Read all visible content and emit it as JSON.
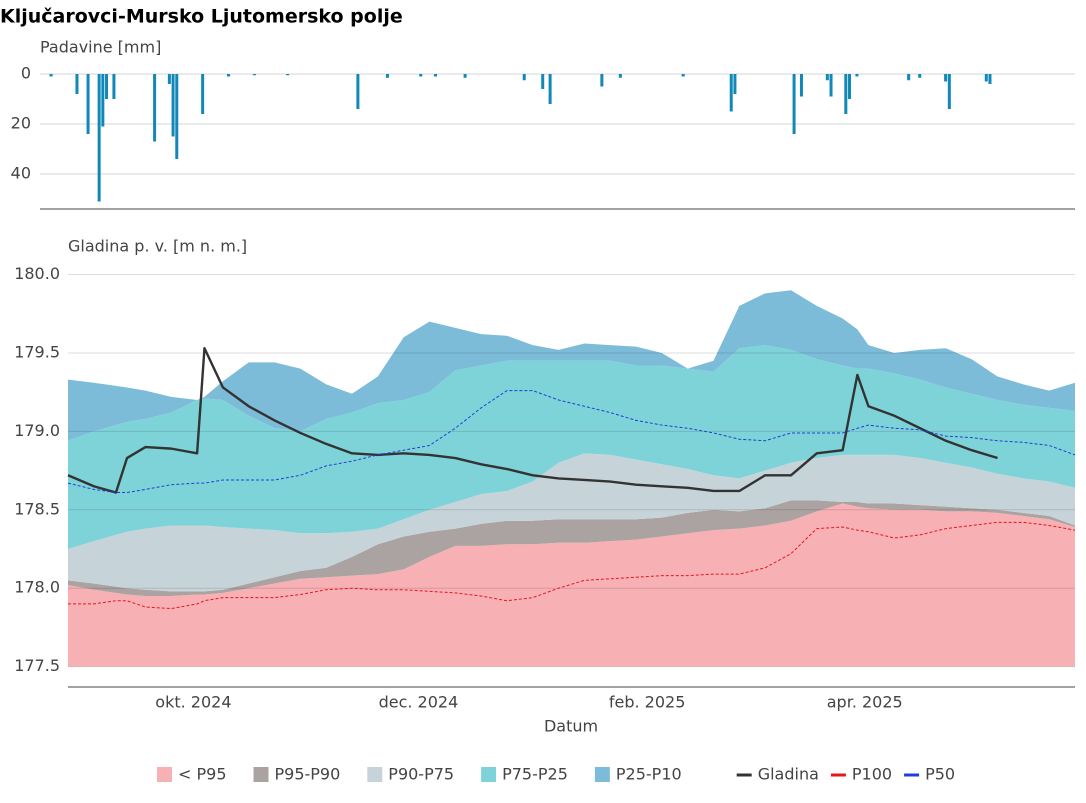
{
  "chart_data": [
    {
      "type": "bar",
      "title": "Ključarovci-Mursko Ljutomersko polje",
      "y_label": "Padavine [mm]",
      "x": [
        "2024-08-24",
        "2024-08-31",
        "2024-09-03",
        "2024-09-06",
        "2024-09-07",
        "2024-09-08",
        "2024-09-10",
        "2024-09-21",
        "2024-09-25",
        "2024-09-26",
        "2024-09-27",
        "2024-10-04",
        "2024-10-11",
        "2024-10-18",
        "2024-10-27",
        "2024-11-15",
        "2024-11-23",
        "2024-12-02",
        "2024-12-06",
        "2024-12-14",
        "2024-12-30",
        "2025-01-04",
        "2025-01-06",
        "2025-01-20",
        "2025-01-25",
        "2025-02-11",
        "2025-02-24",
        "2025-02-25",
        "2025-03-13",
        "2025-03-15",
        "2025-03-22",
        "2025-03-23",
        "2025-03-27",
        "2025-03-28",
        "2025-03-30",
        "2025-04-13",
        "2025-04-16",
        "2025-04-23",
        "2025-04-24",
        "2025-05-04",
        "2025-05-05"
      ],
      "values": [
        1,
        8,
        24,
        51,
        21,
        10,
        10,
        27,
        4,
        25,
        34,
        16,
        1,
        0.5,
        0.5,
        14,
        1.5,
        1,
        1,
        1.5,
        2.5,
        6,
        12,
        5,
        1.5,
        1,
        15,
        8,
        24,
        9,
        2.5,
        9,
        16,
        10,
        1,
        2.5,
        1.5,
        3,
        14,
        3,
        4
      ],
      "color": "#1288b8",
      "xlim": [
        "2024-08-21",
        "2025-05-28"
      ],
      "ylim": [
        0,
        54
      ],
      "y_inverted": true,
      "yticks": [
        0,
        20,
        40
      ],
      "grid": true
    },
    {
      "type": "band",
      "y_label": "Gladina p. v. [m n. m.]",
      "x_label": "Datum",
      "floor": 177.5,
      "x": [
        "2024-08-28",
        "2024-09-04",
        "2024-09-10",
        "2024-09-13",
        "2024-09-18",
        "2024-09-25",
        "2024-10-02",
        "2024-10-04",
        "2024-10-09",
        "2024-10-16",
        "2024-10-23",
        "2024-10-30",
        "2024-11-06",
        "2024-11-13",
        "2024-11-20",
        "2024-11-27",
        "2024-12-04",
        "2024-12-11",
        "2024-12-18",
        "2024-12-25",
        "2025-01-01",
        "2025-01-08",
        "2025-01-15",
        "2025-01-22",
        "2025-01-29",
        "2025-02-05",
        "2025-02-12",
        "2025-02-19",
        "2025-02-26",
        "2025-03-05",
        "2025-03-12",
        "2025-03-19",
        "2025-03-26",
        "2025-03-30",
        "2025-04-02",
        "2025-04-09",
        "2025-04-16",
        "2025-04-23",
        "2025-04-30",
        "2025-05-07",
        "2025-05-14",
        "2025-05-21",
        "2025-05-28"
      ],
      "xlim": [
        "2024-08-28",
        "2025-05-28"
      ],
      "xticks": [
        {
          "value": "2024-10-01",
          "label": "okt. 2024"
        },
        {
          "value": "2024-12-01",
          "label": "dec. 2024"
        },
        {
          "value": "2025-02-01",
          "label": "feb. 2025"
        },
        {
          "value": "2025-04-01",
          "label": "apr. 2025"
        }
      ],
      "ylim": [
        177.37,
        180.08
      ],
      "yticks": [
        177.5,
        {
          "value": 178,
          "label": "178.0"
        },
        178.5,
        {
          "value": 179,
          "label": "179.0"
        },
        179.5,
        {
          "value": 180,
          "label": "180.0"
        }
      ],
      "grid": true,
      "series": [
        {
          "name": "< P95",
          "kind": "band",
          "color": "#f7b0b4",
          "values": [
            178.02,
            177.99,
            177.97,
            177.96,
            177.95,
            177.95,
            177.96,
            177.96,
            177.97,
            178.0,
            178.03,
            178.06,
            178.07,
            178.08,
            178.09,
            178.12,
            178.2,
            178.27,
            178.27,
            178.28,
            178.28,
            178.29,
            178.29,
            178.3,
            178.31,
            178.33,
            178.35,
            178.37,
            178.38,
            178.4,
            178.43,
            178.49,
            178.54,
            178.52,
            178.51,
            178.5,
            178.5,
            178.49,
            178.49,
            178.48,
            178.46,
            178.44,
            178.39
          ]
        },
        {
          "name": "P95-P90",
          "kind": "band",
          "color": "#aaa3a1",
          "values": [
            178.05,
            178.03,
            178.01,
            178.0,
            177.99,
            177.98,
            177.98,
            177.98,
            177.99,
            178.03,
            178.07,
            178.11,
            178.13,
            178.2,
            178.28,
            178.33,
            178.36,
            178.38,
            178.41,
            178.43,
            178.43,
            178.44,
            178.44,
            178.44,
            178.44,
            178.45,
            178.48,
            178.5,
            178.49,
            178.51,
            178.56,
            178.56,
            178.55,
            178.55,
            178.54,
            178.54,
            178.53,
            178.52,
            178.51,
            178.5,
            178.48,
            178.46,
            178.4
          ]
        },
        {
          "name": "P90-P75",
          "kind": "band",
          "color": "#c6d4da",
          "values": [
            178.25,
            178.3,
            178.34,
            178.36,
            178.38,
            178.4,
            178.4,
            178.4,
            178.39,
            178.38,
            178.37,
            178.35,
            178.35,
            178.36,
            178.38,
            178.44,
            178.5,
            178.55,
            178.6,
            178.62,
            178.68,
            178.8,
            178.86,
            178.85,
            178.82,
            178.79,
            178.76,
            178.72,
            178.7,
            178.75,
            178.8,
            178.83,
            178.85,
            178.85,
            178.85,
            178.85,
            178.83,
            178.8,
            178.77,
            178.73,
            178.7,
            178.68,
            178.64
          ]
        },
        {
          "name": "P75-P25",
          "kind": "band",
          "color": "#7ed3d9",
          "values": [
            178.94,
            179.0,
            179.04,
            179.06,
            179.08,
            179.12,
            179.2,
            179.21,
            179.2,
            179.1,
            179.02,
            179.0,
            179.08,
            179.12,
            179.18,
            179.2,
            179.25,
            179.39,
            179.42,
            179.45,
            179.45,
            179.45,
            179.45,
            179.45,
            179.42,
            179.42,
            179.4,
            179.38,
            179.53,
            179.55,
            179.52,
            179.46,
            179.42,
            179.4,
            179.4,
            179.37,
            179.33,
            179.28,
            179.24,
            179.2,
            179.17,
            179.15,
            179.13
          ]
        },
        {
          "name": "P25-P10",
          "kind": "band",
          "color": "#7dbcd9",
          "values": [
            179.33,
            179.31,
            179.29,
            179.28,
            179.26,
            179.22,
            179.2,
            179.22,
            179.32,
            179.44,
            179.44,
            179.4,
            179.3,
            179.24,
            179.35,
            179.6,
            179.7,
            179.66,
            179.62,
            179.61,
            179.55,
            179.52,
            179.56,
            179.55,
            179.54,
            179.5,
            179.4,
            179.45,
            179.8,
            179.88,
            179.9,
            179.8,
            179.72,
            179.65,
            179.55,
            179.5,
            179.52,
            179.53,
            179.46,
            179.35,
            179.3,
            179.26,
            179.31
          ]
        },
        {
          "name": "Gladina",
          "kind": "line",
          "color": "#333333",
          "dashed": false,
          "values": [
            178.72,
            178.65,
            178.61,
            178.83,
            178.9,
            178.89,
            178.86,
            179.53,
            179.28,
            179.16,
            179.07,
            178.99,
            178.92,
            178.86,
            178.85,
            178.86,
            178.85,
            178.83,
            178.79,
            178.76,
            178.72,
            178.7,
            178.69,
            178.68,
            178.66,
            178.65,
            178.64,
            178.62,
            178.62,
            178.72,
            178.72,
            178.86,
            178.88,
            179.36,
            179.16,
            179.1,
            179.02,
            178.94,
            178.88,
            178.83,
            null,
            null,
            null
          ]
        },
        {
          "name": "P100",
          "kind": "line",
          "color": "#e8161b",
          "dashed": true,
          "values": [
            177.9,
            177.9,
            177.92,
            177.92,
            177.88,
            177.87,
            177.9,
            177.92,
            177.94,
            177.94,
            177.94,
            177.96,
            177.99,
            178.0,
            177.99,
            177.99,
            177.98,
            177.97,
            177.95,
            177.92,
            177.94,
            178.0,
            178.05,
            178.06,
            178.07,
            178.08,
            178.08,
            178.09,
            178.09,
            178.13,
            178.22,
            178.38,
            178.39,
            178.37,
            178.36,
            178.32,
            178.34,
            178.38,
            178.4,
            178.42,
            178.42,
            178.4,
            178.37
          ]
        },
        {
          "name": "P50",
          "kind": "line",
          "color": "#1f3fd6",
          "dashed": true,
          "values": [
            178.67,
            178.63,
            178.61,
            178.61,
            178.63,
            178.66,
            178.67,
            178.67,
            178.69,
            178.69,
            178.69,
            178.72,
            178.78,
            178.81,
            178.85,
            178.88,
            178.91,
            179.02,
            179.15,
            179.26,
            179.26,
            179.2,
            179.16,
            179.12,
            179.07,
            179.04,
            179.02,
            178.99,
            178.95,
            178.94,
            178.99,
            178.99,
            178.99,
            179.02,
            179.04,
            179.02,
            179.01,
            178.97,
            178.96,
            178.94,
            178.93,
            178.91,
            178.85
          ]
        }
      ]
    }
  ]
}
